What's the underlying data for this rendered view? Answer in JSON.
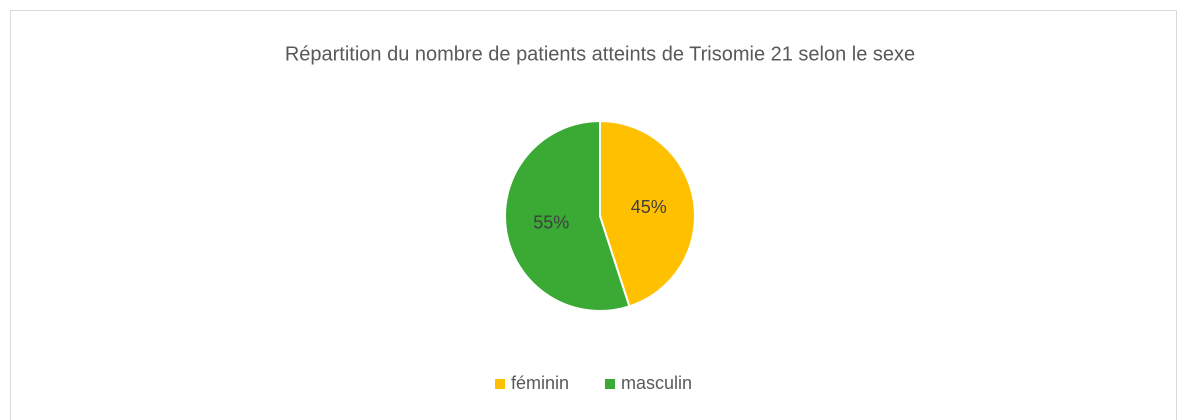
{
  "chart_data": {
    "type": "pie",
    "title": "Répartition du nombre de patients atteints de Trisomie 21 selon le sexe",
    "categories": [
      "féminin",
      "masculin"
    ],
    "values": [
      45,
      55
    ],
    "value_labels": [
      "45%",
      "55%"
    ],
    "colors": [
      "#ffc000",
      "#3aaa35"
    ],
    "legend": "bottom"
  }
}
